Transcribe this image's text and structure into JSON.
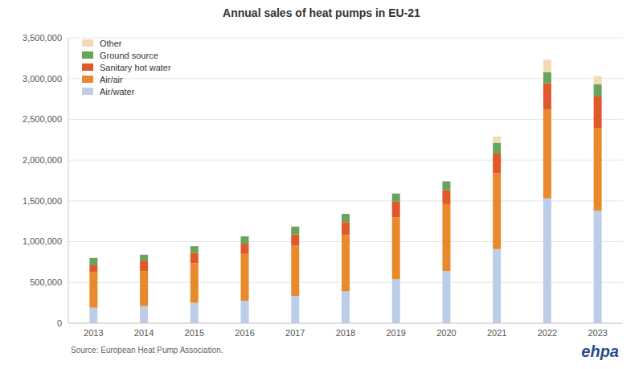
{
  "chart_data": {
    "type": "bar",
    "title": "Annual sales of heat pumps in EU-21",
    "source": "Source: European Heat Pump Association.",
    "logo_text": "ehpa",
    "categories": [
      "2013",
      "2014",
      "2015",
      "2016",
      "2017",
      "2018",
      "2019",
      "2020",
      "2021",
      "2022",
      "2023"
    ],
    "series": [
      {
        "name": "Air/water",
        "color": "#bccde8",
        "values": [
          190000,
          210000,
          250000,
          275000,
          335000,
          390000,
          540000,
          640000,
          910000,
          1530000,
          1380000
        ]
      },
      {
        "name": "Air/air",
        "color": "#e8892b",
        "values": [
          440000,
          430000,
          485000,
          575000,
          615000,
          690000,
          760000,
          820000,
          930000,
          1090000,
          1010000
        ]
      },
      {
        "name": "Sanitary hot water",
        "color": "#e0592a",
        "values": [
          80000,
          120000,
          125000,
          125000,
          140000,
          160000,
          190000,
          170000,
          240000,
          320000,
          390000
        ]
      },
      {
        "name": "Ground source",
        "color": "#6aa35a",
        "values": [
          90000,
          80000,
          85000,
          90000,
          95000,
          100000,
          100000,
          110000,
          130000,
          140000,
          150000
        ]
      },
      {
        "name": "Other",
        "color": "#f3d9b5",
        "values": [
          0,
          0,
          0,
          0,
          0,
          0,
          0,
          0,
          80000,
          150000,
          100000
        ]
      }
    ],
    "stacked": true,
    "grid": true,
    "legend": "upper left",
    "ylim": [
      0,
      3500000
    ],
    "yticks": [
      0,
      {
        "value": 500000,
        "label": "500,000"
      },
      {
        "value": 1000000,
        "label": "1,000,000"
      },
      {
        "value": 1500000,
        "label": "1,500,000"
      },
      {
        "value": 2000000,
        "label": "2,000,000"
      },
      {
        "value": 2500000,
        "label": "2,500,000"
      },
      {
        "value": 3000000,
        "label": "3,000,000"
      },
      {
        "value": 3500000,
        "label": "3,500,000"
      }
    ]
  }
}
